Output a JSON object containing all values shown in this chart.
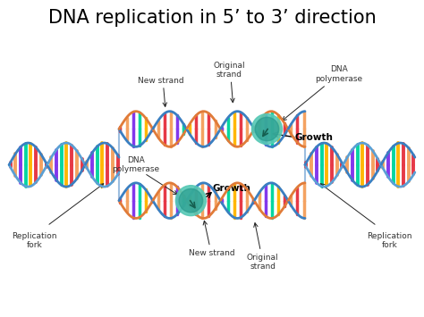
{
  "title": "DNA replication in 5’ to 3’ direction",
  "title_fontsize": 15,
  "bg_color": "#ffffff",
  "labels": {
    "new_strand_top": "New strand",
    "original_strand_top": "Original\nstrand",
    "dna_polymerase_top": "DNA\npolymerase",
    "growth_top": "Growth",
    "dna_polymerase_mid": "DNA\npolymerase",
    "growth_mid": "Growth",
    "replication_fork_left": "Replication\nfork",
    "replication_fork_right": "Replication\nfork",
    "new_strand_bot": "New strand",
    "original_strand_bot": "Original\nstrand"
  },
  "strand_blue": "#3a7fc1",
  "strand_blue2": "#5b9fd4",
  "rung_colors": [
    "#e63946",
    "#f4a261",
    "#8338ec",
    "#06d6a0",
    "#ffb703",
    "#e63946",
    "#f4a261"
  ],
  "polymerase_color1": "#56c8b5",
  "polymerase_color2": "#2a9d8f",
  "label_fontsize": 6.5,
  "growth_fontsize": 7.5,
  "arrow_color": "#222222"
}
